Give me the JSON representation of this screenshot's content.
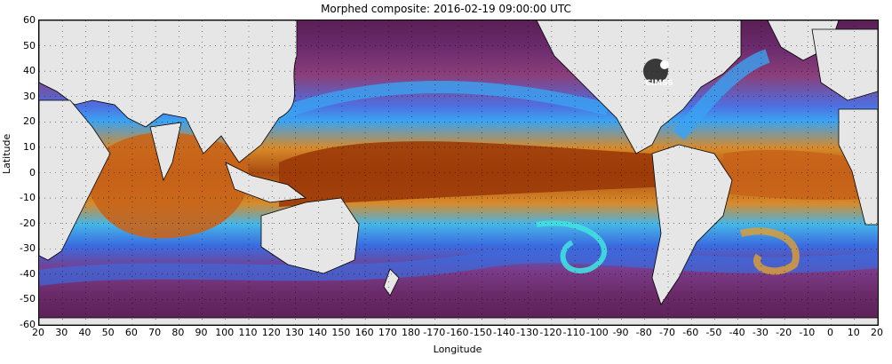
{
  "title": "Morphed composite: 2016-02-19 09:00:00 UTC",
  "y_axis_title": "Latitude",
  "x_axis_title": "Longitude",
  "y_ticks": [
    "60",
    "50",
    "40",
    "30",
    "20",
    "10",
    "0",
    "-10",
    "-20",
    "-30",
    "-40",
    "-50",
    "-60"
  ],
  "x_ticks": [
    "20",
    "30",
    "40",
    "50",
    "60",
    "70",
    "80",
    "90",
    "100",
    "110",
    "120",
    "130",
    "140",
    "150",
    "160",
    "170",
    "180",
    "-170",
    "-160",
    "-150",
    "-140",
    "-130",
    "-120",
    "-110",
    "-100",
    "-90",
    "-80",
    "-70",
    "-60",
    "-50",
    "-40",
    "-30",
    "-20",
    "-10",
    "0",
    "10",
    "20"
  ],
  "logo_text": "CIMSS",
  "colors": {
    "land": "#e6e6e6",
    "coast": "#000000",
    "dry_purple": "#6b2b6d",
    "moist_blue": "#3a7be8",
    "wet_orange": "#d8781c",
    "very_wet_brown": "#8a2a05",
    "cyan": "#40e0e0"
  }
}
